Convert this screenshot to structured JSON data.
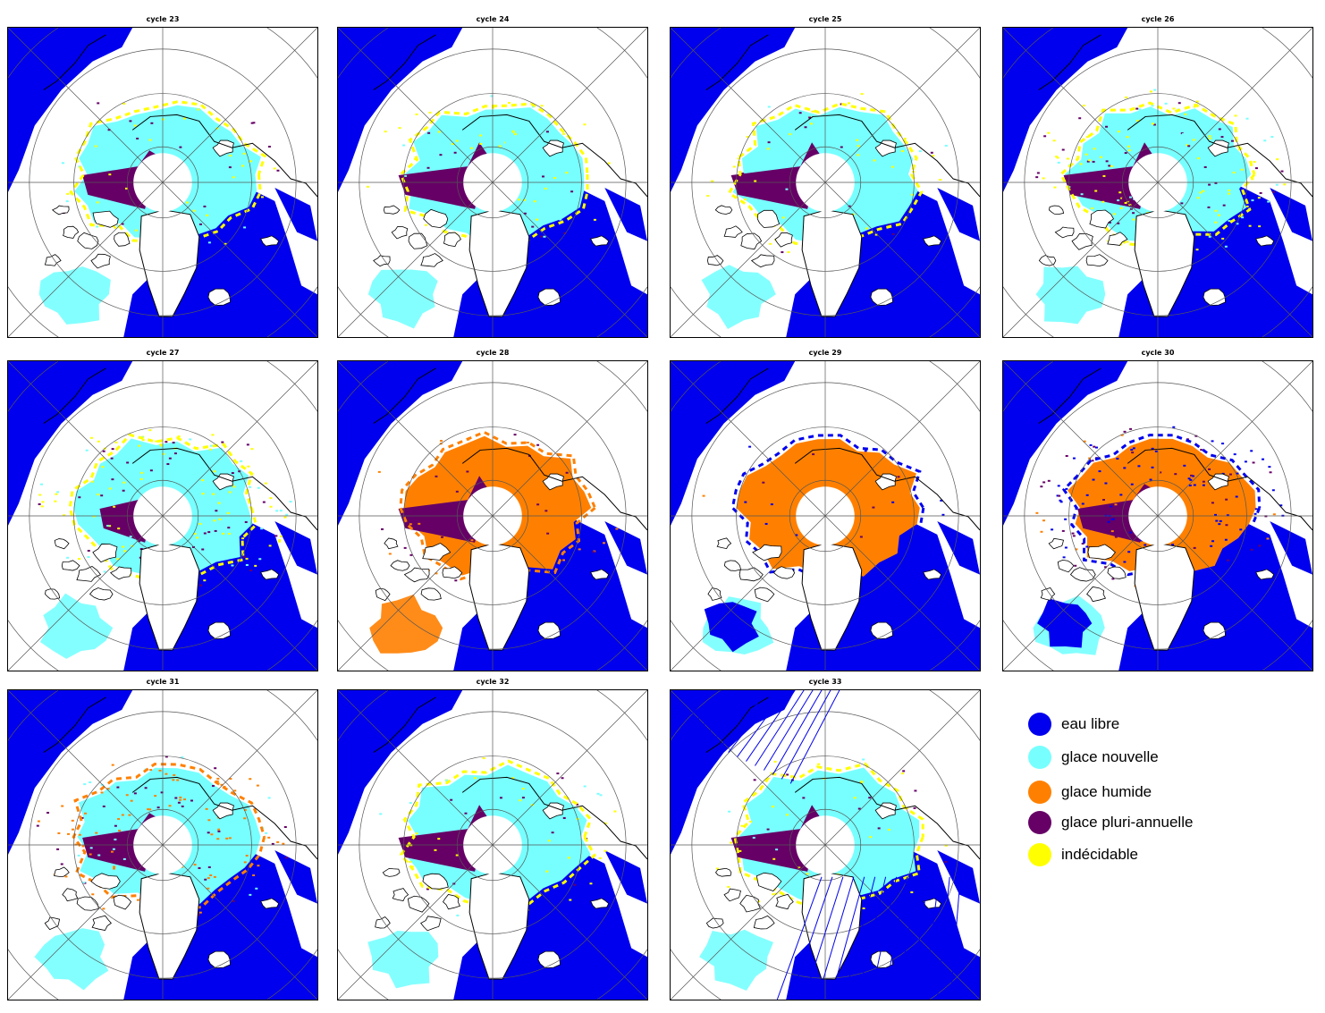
{
  "colors": {
    "eau_libre": "#0000ee",
    "glace_nouvelle": "#77ffff",
    "glace_humide": "#ff8000",
    "glace_pluri_annuelle": "#660066",
    "indecidable": "#ffff00",
    "land": "#ffffff",
    "coast": "#000000",
    "grid": "#555555"
  },
  "panels": [
    {
      "title": "cycle 23",
      "class": {
        "center": "nouvelle",
        "multi": "medium",
        "margin": "indecidable",
        "mix": "sparse"
      }
    },
    {
      "title": "cycle 24",
      "class": {
        "center": "nouvelle",
        "multi": "large",
        "margin": "indecidable",
        "mix": "sparse"
      }
    },
    {
      "title": "cycle 25",
      "class": {
        "center": "nouvelle",
        "multi": "large",
        "margin": "indecidable",
        "mix": "sparse"
      }
    },
    {
      "title": "cycle 26",
      "class": {
        "center": "nouvelle",
        "multi": "large",
        "margin": "indecidable",
        "mix": "dense"
      }
    },
    {
      "title": "cycle 27",
      "class": {
        "center": "nouvelle",
        "multi": "small",
        "margin": "indecidable",
        "mix": "dense"
      }
    },
    {
      "title": "cycle 28",
      "class": {
        "center": "humide",
        "multi": "large",
        "margin": "humide",
        "mix": "sparse"
      }
    },
    {
      "title": "cycle 29",
      "class": {
        "center": "humide",
        "multi": "none",
        "margin": "eau_libre",
        "mix": "none"
      }
    },
    {
      "title": "cycle 30",
      "class": {
        "center": "humide",
        "multi": "medium",
        "margin": "eau_libre",
        "mix": "dense"
      }
    },
    {
      "title": "cycle 31",
      "class": {
        "center": "nouvelle",
        "multi": "medium",
        "margin": "humide",
        "mix": "dense"
      }
    },
    {
      "title": "cycle 32",
      "class": {
        "center": "nouvelle",
        "multi": "large",
        "margin": "indecidable",
        "mix": "sparse"
      }
    },
    {
      "title": "cycle 33",
      "class": {
        "center": "nouvelle",
        "multi": "large",
        "margin": "indecidable",
        "mix": "sparse"
      }
    }
  ],
  "legend": [
    {
      "key": "eau_libre",
      "label": "eau libre"
    },
    {
      "key": "glace_nouvelle",
      "label": "glace nouvelle"
    },
    {
      "key": "glace_humide",
      "label": "glace humide"
    },
    {
      "key": "glace_pluri_annuelle",
      "label": "glace pluri-annuelle"
    },
    {
      "key": "indecidable",
      "label": "indécidable"
    }
  ]
}
